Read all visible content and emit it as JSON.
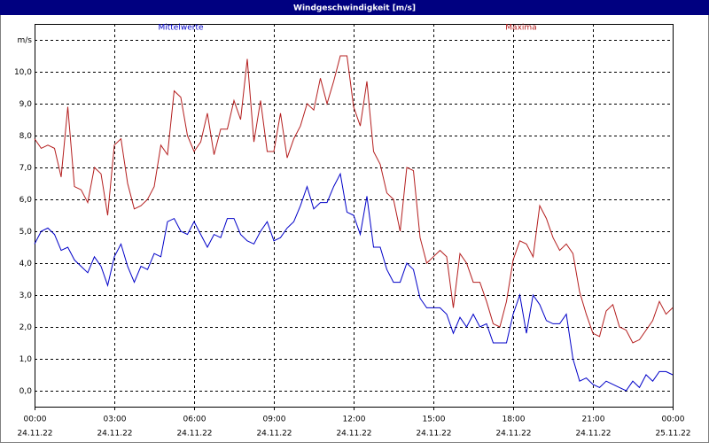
{
  "chart_data": {
    "type": "line",
    "title": "Windgeschwindigkeit [m/s]",
    "x": [
      0,
      0.25,
      0.5,
      0.75,
      1,
      1.25,
      1.5,
      1.75,
      2,
      2.25,
      2.5,
      2.75,
      3,
      3.25,
      3.5,
      3.75,
      4,
      4.25,
      4.5,
      4.75,
      5,
      5.25,
      5.5,
      5.75,
      6,
      6.25,
      6.5,
      6.75,
      7,
      7.25,
      7.5,
      7.75,
      8,
      8.25,
      8.5,
      8.75,
      9,
      9.25,
      9.5,
      9.75,
      10,
      10.25,
      10.5,
      10.75,
      11,
      11.25,
      11.5,
      11.75,
      12,
      12.25,
      12.5,
      12.75,
      13,
      13.25,
      13.5,
      13.75,
      14,
      14.25,
      14.5,
      14.75,
      15,
      15.25,
      15.5,
      15.75,
      16,
      16.25,
      16.5,
      16.75,
      17,
      17.25,
      17.5,
      17.75,
      18,
      18.25,
      18.5,
      18.75,
      19,
      19.25,
      19.5,
      19.75,
      20,
      20.25,
      20.5,
      20.75,
      21,
      21.25,
      21.5,
      21.75,
      22,
      22.25,
      22.5,
      22.75,
      23,
      23.25,
      23.5,
      23.75,
      24
    ],
    "series": [
      {
        "name": "Mittelwerte",
        "color": "#0000c8",
        "values": [
          4.6,
          5.0,
          5.1,
          4.9,
          4.4,
          4.5,
          4.1,
          3.9,
          3.7,
          4.2,
          3.9,
          3.3,
          4.2,
          4.6,
          3.9,
          3.4,
          3.9,
          3.8,
          4.3,
          4.2,
          5.3,
          5.4,
          5.0,
          4.9,
          5.3,
          4.9,
          4.5,
          4.9,
          4.8,
          5.4,
          5.4,
          4.9,
          4.7,
          4.6,
          5.0,
          5.3,
          4.7,
          4.8,
          5.1,
          5.3,
          5.8,
          6.4,
          5.7,
          5.9,
          5.9,
          6.4,
          6.8,
          5.6,
          5.5,
          4.9,
          6.1,
          4.5,
          4.5,
          3.8,
          3.4,
          3.4,
          4.0,
          3.8,
          2.9,
          2.6,
          2.6,
          2.6,
          2.4,
          1.8,
          2.3,
          2.0,
          2.4,
          2.0,
          2.1,
          1.5,
          1.5,
          1.5,
          2.4,
          3.0,
          1.8,
          3.0,
          2.7,
          2.2,
          2.1,
          2.1,
          2.4,
          1.0,
          0.3,
          0.4,
          0.2,
          0.1,
          0.3,
          0.2,
          0.1,
          0.0,
          0.3,
          0.1,
          0.5,
          0.3,
          0.6,
          0.6,
          0.5
        ]
      },
      {
        "name": "Maxima",
        "color": "#b41e1e",
        "values": [
          7.9,
          7.6,
          7.7,
          7.6,
          6.7,
          8.9,
          6.4,
          6.3,
          5.9,
          7.0,
          6.8,
          5.5,
          7.7,
          7.9,
          6.5,
          5.7,
          5.8,
          6.0,
          6.4,
          7.7,
          7.4,
          9.4,
          9.2,
          8.0,
          7.5,
          7.8,
          8.7,
          7.4,
          8.2,
          8.2,
          9.1,
          8.5,
          10.4,
          7.8,
          9.1,
          7.5,
          7.5,
          8.7,
          7.3,
          7.9,
          8.3,
          9.0,
          8.8,
          9.8,
          9.0,
          9.7,
          10.5,
          10.5,
          8.9,
          8.3,
          9.7,
          7.5,
          7.1,
          6.2,
          6.0,
          5.0,
          7.0,
          6.9,
          4.8,
          4.0,
          4.2,
          4.4,
          4.2,
          2.6,
          4.3,
          4.0,
          3.4,
          3.4,
          2.8,
          2.1,
          2.0,
          2.8,
          4.1,
          4.7,
          4.6,
          4.2,
          5.8,
          5.4,
          4.8,
          4.4,
          4.6,
          4.3,
          3.1,
          2.4,
          1.8,
          1.7,
          2.5,
          2.7,
          2.0,
          1.9,
          1.5,
          1.6,
          1.9,
          2.2,
          2.8,
          2.4,
          2.6
        ]
      }
    ],
    "xlim": [
      0,
      24
    ],
    "xticks": [
      {
        "value": 0,
        "label": "00:00"
      },
      {
        "value": 3,
        "label": "03:00"
      },
      {
        "value": 6,
        "label": "06:00"
      },
      {
        "value": 9,
        "label": "09:00"
      },
      {
        "value": 12,
        "label": "12:00"
      },
      {
        "value": 15,
        "label": "15:00"
      },
      {
        "value": 18,
        "label": "18:00"
      },
      {
        "value": 21,
        "label": "21:00"
      },
      {
        "value": 24,
        "label": "00:00"
      }
    ],
    "x_dates": [
      "24.11.22",
      "24.11.22",
      "24.11.22",
      "24.11.22",
      "24.11.22",
      "24.11.22",
      "24.11.22",
      "24.11.22",
      "25.11.22"
    ],
    "ylim": [
      -0.5,
      11.5
    ],
    "yticks": [
      {
        "value": 0,
        "label": "0,0"
      },
      {
        "value": 1,
        "label": "1,0"
      },
      {
        "value": 2,
        "label": "2,0"
      },
      {
        "value": 3,
        "label": "3,0"
      },
      {
        "value": 4,
        "label": "4,0"
      },
      {
        "value": 5,
        "label": "5,0"
      },
      {
        "value": 6,
        "label": "6,0"
      },
      {
        "value": 7,
        "label": "7,0"
      },
      {
        "value": 8,
        "label": "8,0"
      },
      {
        "value": 9,
        "label": "9,0"
      },
      {
        "value": 10,
        "label": "10,0"
      },
      {
        "value": 11,
        "label": "m/s"
      }
    ],
    "grid": true
  }
}
